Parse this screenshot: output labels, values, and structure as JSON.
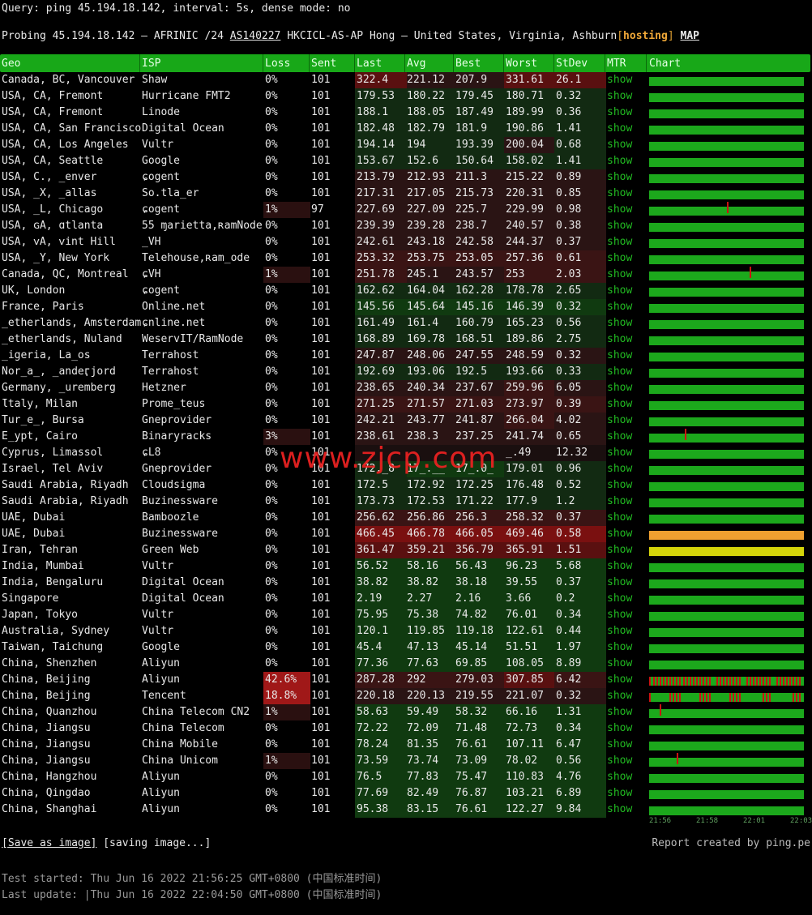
{
  "query": "Query: ping 45.194.18.142, interval: 5s, dense mode: no",
  "probing": {
    "prefix": "Probing 45.194.18.142 – AFRINIC /24",
    "asn": "AS140227",
    "rest": "HKCICL-AS-AP Hong – United States, Virginia, Ashburn",
    "bracket_open": "[",
    "hosting": "hosting",
    "bracket_close": "]",
    "map": "MAP"
  },
  "headers": [
    "Geo",
    "ISP",
    "Loss",
    "Sent",
    "Last",
    "Avg",
    "Best",
    "Worst",
    "StDev",
    "MTR",
    "Chart"
  ],
  "mtr_label": "show",
  "rows": [
    {
      "geo": "Canada, BC, Vancouver",
      "isp": "Shaw",
      "loss": "0%",
      "sent": "101",
      "last": "322.4",
      "avg": "221.12",
      "best": "207.9",
      "worst": "331.61",
      "stdev": "26.1"
    },
    {
      "geo": "USA, CA, Fremont",
      "isp": "Hurricane FMT2",
      "loss": "0%",
      "sent": "101",
      "last": "179.53",
      "avg": "180.22",
      "best": "179.45",
      "worst": "180.71",
      "stdev": "0.32"
    },
    {
      "geo": "USA, CA, Fremont",
      "isp": "Linode",
      "loss": "0%",
      "sent": "101",
      "last": "188.1",
      "avg": "188.05",
      "best": "187.49",
      "worst": "189.99",
      "stdev": "0.36"
    },
    {
      "geo": "USA, CA, San Francisco",
      "isp": "Digital Ocean",
      "loss": "0%",
      "sent": "101",
      "last": "182.48",
      "avg": "182.79",
      "best": "181.9",
      "worst": "190.86",
      "stdev": "1.41"
    },
    {
      "geo": "USA, CA, Los Angeles",
      "isp": "Vultr",
      "loss": "0%",
      "sent": "101",
      "last": "194.14",
      "avg": "194",
      "best": "193.39",
      "worst": "200.04",
      "stdev": "0.68"
    },
    {
      "geo": "USA, CA, Seattle",
      "isp": "Google",
      "loss": "0%",
      "sent": "101",
      "last": "153.67",
      "avg": "152.6",
      "best": "150.64",
      "worst": "158.02",
      "stdev": "1.41"
    },
    {
      "geo": "USA, C., ̲enver",
      "isp": "ɕogent",
      "loss": "0%",
      "sent": "101",
      "last": "213.79",
      "avg": "212.93",
      "best": "211.3",
      "worst": "215.22",
      "stdev": "0.89"
    },
    {
      "geo": "USA, ̲X, ̲allas",
      "isp": "So.tla̲er",
      "loss": "0%",
      "sent": "101",
      "last": "217.31",
      "avg": "217.05",
      "best": "215.73",
      "worst": "220.31",
      "stdev": "0.85"
    },
    {
      "geo": "USA, ̲L, Chicago",
      "isp": "ɕogent",
      "loss": "1%",
      "sent": "97",
      "last": "227.69",
      "avg": "227.09",
      "best": "225.7",
      "worst": "229.99",
      "stdev": "0.98"
    },
    {
      "geo": "USA, ɢA, ɑtlanta",
      "isp": "55 ɱarietta,ʀamNode",
      "loss": "0%",
      "sent": "101",
      "last": "239.39",
      "avg": "239.28",
      "best": "238.7",
      "worst": "240.57",
      "stdev": "0.38"
    },
    {
      "geo": "USA, ᴠA, ᴠint Hill",
      "isp": "̲VH",
      "loss": "0%",
      "sent": "101",
      "last": "242.61",
      "avg": "243.18",
      "best": "242.58",
      "worst": "244.37",
      "stdev": "0.37"
    },
    {
      "geo": "USA, ̲Y, New York",
      "isp": "Telehouse,ʀam̲ode",
      "loss": "0%",
      "sent": "101",
      "last": "253.32",
      "avg": "253.75",
      "best": "253.05",
      "worst": "257.36",
      "stdev": "0.61"
    },
    {
      "geo": "Canada, QC, Montreal",
      "isp": "ɕVH",
      "loss": "1%",
      "sent": "101",
      "last": "251.78",
      "avg": "245.1",
      "best": "243.57",
      "worst": "253",
      "stdev": "2.03"
    },
    {
      "geo": "UK, London",
      "isp": "ɕogent",
      "loss": "0%",
      "sent": "101",
      "last": "162.62",
      "avg": "164.04",
      "best": "162.28",
      "worst": "178.78",
      "stdev": "2.65"
    },
    {
      "geo": "France, Paris",
      "isp": "Online.net",
      "loss": "0%",
      "sent": "101",
      "last": "145.56",
      "avg": "145.64",
      "best": "145.16",
      "worst": "146.39",
      "stdev": "0.32"
    },
    {
      "geo": "̲etherlands, Amsterdam",
      "isp": "ɕnline.net",
      "loss": "0%",
      "sent": "101",
      "last": "161.49",
      "avg": "161.4",
      "best": "160.79",
      "worst": "165.23",
      "stdev": "0.56"
    },
    {
      "geo": "̲etherlands, Nuland",
      "isp": "WeservIT/RamNode",
      "loss": "0%",
      "sent": "101",
      "last": "168.89",
      "avg": "169.78",
      "best": "168.51",
      "worst": "189.86",
      "stdev": "2.75"
    },
    {
      "geo": "̲igeria, La̲os",
      "isp": "Terrahost",
      "loss": "0%",
      "sent": "101",
      "last": "247.87",
      "avg": "248.06",
      "best": "247.55",
      "worst": "248.59",
      "stdev": "0.32"
    },
    {
      "geo": "Nor̲a̲, ̲andeӷjord",
      "isp": "Terrahost",
      "loss": "0%",
      "sent": "101",
      "last": "192.69",
      "avg": "193.06",
      "best": "192.5",
      "worst": "193.66",
      "stdev": "0.33"
    },
    {
      "geo": "Germany, ̲uremberg",
      "isp": "Hetzner",
      "loss": "0%",
      "sent": "101",
      "last": "238.65",
      "avg": "240.34",
      "best": "237.67",
      "worst": "259.96",
      "stdev": "6.05"
    },
    {
      "geo": "Ɩtaly, Milan",
      "isp": "Prome̲teus",
      "loss": "0%",
      "sent": "101",
      "last": "271.25",
      "avg": "271.57",
      "best": "271.03",
      "worst": "273.97",
      "stdev": "0.39"
    },
    {
      "geo": "Tur̲e̲, Bursa",
      "isp": "Gneprovider",
      "loss": "0%",
      "sent": "101",
      "last": "242.21",
      "avg": "243.77",
      "best": "241.87",
      "worst": "266.04",
      "stdev": "4.02"
    },
    {
      "geo": "E̲ypt, Cairo",
      "isp": "Binaryracks",
      "loss": "3%",
      "sent": "101",
      "last": "238.61",
      "avg": "238.3",
      "best": "237.25",
      "worst": "241.74",
      "stdev": "0.65"
    },
    {
      "geo": "Cyprus, Limassol",
      "isp": "ɕL8",
      "loss": "0%",
      "sent": "101",
      "last": "",
      "avg": "",
      "best": "",
      "worst": "̲.49",
      "stdev": "12.32"
    },
    {
      "geo": "Israel, Tel Aviv",
      "isp": "Gneprovider",
      "loss": "0%",
      "sent": "101",
      "last": "172.̲8",
      "avg": "17̲.̲̲",
      "best": "17̲.0̲",
      "worst": "179.01",
      "stdev": "0.96"
    },
    {
      "geo": "Saudi Arabia, Riyadh",
      "isp": "Cloudsigma",
      "loss": "0%",
      "sent": "101",
      "last": "172.5",
      "avg": "172.92",
      "best": "172.25",
      "worst": "176.48",
      "stdev": "0.52"
    },
    {
      "geo": "Saudi Arabia, Riyadh",
      "isp": "Buzinessware",
      "loss": "0%",
      "sent": "101",
      "last": "173.73",
      "avg": "172.53",
      "best": "171.22",
      "worst": "177.9",
      "stdev": "1.2"
    },
    {
      "geo": "UAE, Dubai",
      "isp": "Bamboozle",
      "loss": "0%",
      "sent": "101",
      "last": "256.62",
      "avg": "256.86",
      "best": "256.3",
      "worst": "258.32",
      "stdev": "0.37"
    },
    {
      "geo": "UAE, Dubai",
      "isp": "Buzinessware",
      "loss": "0%",
      "sent": "101",
      "last": "466.45",
      "avg": "466.78",
      "best": "466.05",
      "worst": "469.46",
      "stdev": "0.58"
    },
    {
      "geo": "Iran, Tehran",
      "isp": "Green Web",
      "loss": "0%",
      "sent": "101",
      "last": "361.47",
      "avg": "359.21",
      "best": "356.79",
      "worst": "365.91",
      "stdev": "1.51"
    },
    {
      "geo": "India, Mumbai",
      "isp": "Vultr",
      "loss": "0%",
      "sent": "101",
      "last": "56.52",
      "avg": "58.16",
      "best": "56.43",
      "worst": "96.23",
      "stdev": "5.68"
    },
    {
      "geo": "India, Bengaluru",
      "isp": "Digital Ocean",
      "loss": "0%",
      "sent": "101",
      "last": "38.82",
      "avg": "38.82",
      "best": "38.18",
      "worst": "39.55",
      "stdev": "0.37"
    },
    {
      "geo": "Singapore",
      "isp": "Digital Ocean",
      "loss": "0%",
      "sent": "101",
      "last": "2.19",
      "avg": "2.27",
      "best": "2.16",
      "worst": "3.66",
      "stdev": "0.2"
    },
    {
      "geo": "Japan, Tokyo",
      "isp": "Vultr",
      "loss": "0%",
      "sent": "101",
      "last": "75.95",
      "avg": "75.38",
      "best": "74.82",
      "worst": "76.01",
      "stdev": "0.34"
    },
    {
      "geo": "Australia, Sydney",
      "isp": "Vultr",
      "loss": "0%",
      "sent": "101",
      "last": "120.1",
      "avg": "119.85",
      "best": "119.18",
      "worst": "122.61",
      "stdev": "0.44"
    },
    {
      "geo": "Taiwan, Taichung",
      "isp": "Google",
      "loss": "0%",
      "sent": "101",
      "last": "45.4",
      "avg": "47.13",
      "best": "45.14",
      "worst": "51.51",
      "stdev": "1.97"
    },
    {
      "geo": "China, Shenzhen",
      "isp": "Aliyun",
      "loss": "0%",
      "sent": "101",
      "last": "77.36",
      "avg": "77.63",
      "best": "69.85",
      "worst": "108.05",
      "stdev": "8.89"
    },
    {
      "geo": "China, Beijing",
      "isp": "Aliyun",
      "loss": "42.6%",
      "sent": "101",
      "last": "287.28",
      "avg": "292",
      "best": "279.03",
      "worst": "307.85",
      "stdev": "6.42"
    },
    {
      "geo": "China, Beijing",
      "isp": "Tencent",
      "loss": "18.8%",
      "sent": "101",
      "last": "220.18",
      "avg": "220.13",
      "best": "219.55",
      "worst": "221.07",
      "stdev": "0.32"
    },
    {
      "geo": "China, Quanzhou",
      "isp": "China Telecom CN2",
      "loss": "1%",
      "sent": "101",
      "last": "58.63",
      "avg": "59.49",
      "best": "58.32",
      "worst": "66.16",
      "stdev": "1.31"
    },
    {
      "geo": "China, Jiangsu",
      "isp": "China Telecom",
      "loss": "0%",
      "sent": "101",
      "last": "72.22",
      "avg": "72.09",
      "best": "71.48",
      "worst": "72.73",
      "stdev": "0.34"
    },
    {
      "geo": "China, Jiangsu",
      "isp": "China Mobile",
      "loss": "0%",
      "sent": "101",
      "last": "78.24",
      "avg": "81.35",
      "best": "76.61",
      "worst": "107.11",
      "stdev": "6.47"
    },
    {
      "geo": "China, Jiangsu",
      "isp": "China Unicom",
      "loss": "1%",
      "sent": "101",
      "last": "73.59",
      "avg": "73.74",
      "best": "73.09",
      "worst": "78.02",
      "stdev": "0.56"
    },
    {
      "geo": "China, Hangzhou",
      "isp": "Aliyun",
      "loss": "0%",
      "sent": "101",
      "last": "76.5",
      "avg": "77.83",
      "best": "75.47",
      "worst": "110.83",
      "stdev": "4.76"
    },
    {
      "geo": "China, Qingdao",
      "isp": "Aliyun",
      "loss": "0%",
      "sent": "101",
      "last": "77.69",
      "avg": "82.49",
      "best": "76.87",
      "worst": "103.21",
      "stdev": "6.89"
    },
    {
      "geo": "China, Shanghai",
      "isp": "Aliyun",
      "loss": "0%",
      "sent": "101",
      "last": "95.38",
      "avg": "83.15",
      "best": "76.61",
      "worst": "122.27",
      "stdev": "9.84"
    }
  ],
  "axis_ticks": [
    "21:56",
    "21:58",
    "22:01",
    "22:03"
  ],
  "save_link": "[Save as image]",
  "saving": "[saving image...]",
  "report": "Report created by ping.pe",
  "test_started": "Test started: Thu Jun 16 2022 21:56:25 GMT+0800 (中国标准时间)",
  "last_update": "Last update: |Thu Jun 16 2022 22:04:50 GMT+0800 (中国标准时间)",
  "watermark": "www.zjcp.com",
  "colors": {
    "green": "#1ca81c",
    "red": "#cc1111",
    "orange": "#f0a030",
    "yellow": "#d4d40a"
  }
}
